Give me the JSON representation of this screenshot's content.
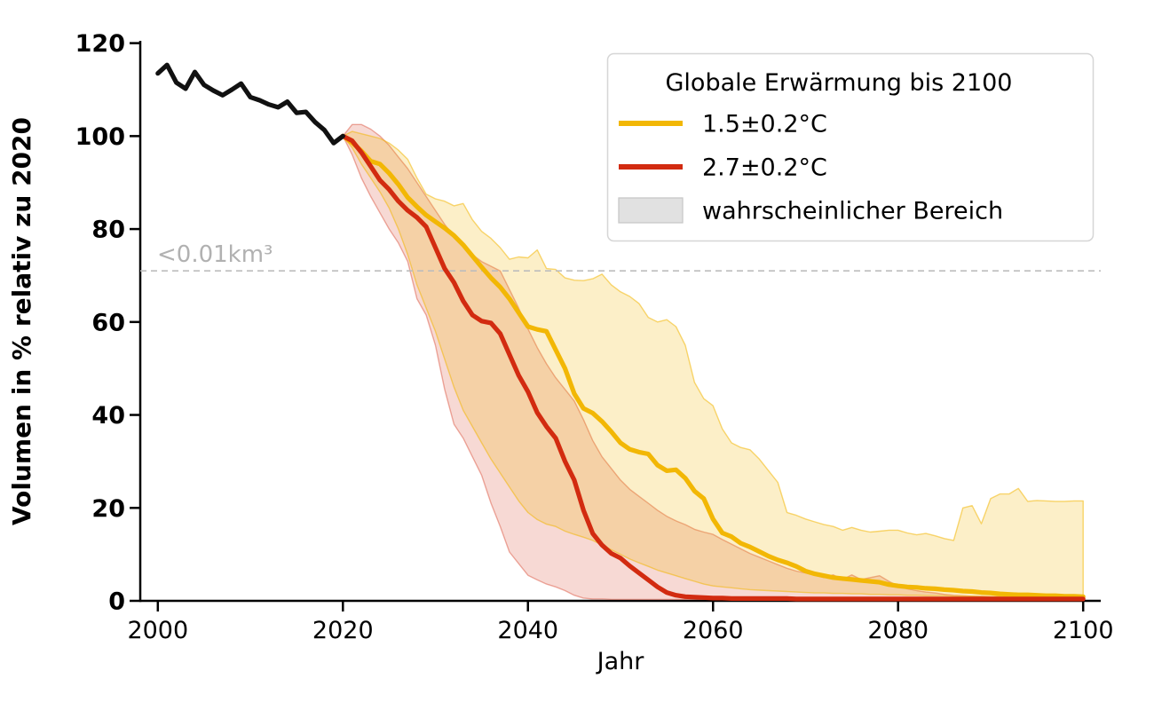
{
  "chart_data": {
    "type": "line",
    "title": "",
    "xlabel": "Jahr",
    "ylabel": "Volumen in % relativ zu 2020",
    "xlim": [
      1998.1,
      2101.9
    ],
    "ylim": [
      0,
      120.5
    ],
    "xticks": [
      2000,
      2020,
      2040,
      2060,
      2080,
      2100
    ],
    "yticks": [
      0,
      20,
      40,
      60,
      80,
      100,
      120
    ],
    "grid": false,
    "axis_color": "#000000",
    "threshold": {
      "value": 71,
      "label": "<0.01km³",
      "line_color": "#bdbdbd",
      "label_color": "#b1b1b1"
    },
    "legend": {
      "position": "top-right",
      "title": "Globale Erwärmung bis 2100",
      "border_color": "#d6d6d6",
      "entries": [
        {
          "label": "1.5±0.2°C",
          "type": "line",
          "color": "#f2b705"
        },
        {
          "label": "2.7±0.2°C",
          "type": "line",
          "color": "#d22b10"
        },
        {
          "label": "wahrscheinlicher Bereich",
          "type": "patch",
          "color": "#e1e1e1",
          "edge": "#c8c8c8"
        }
      ]
    },
    "series": [
      {
        "id": "historical",
        "color": "#111111",
        "x_start": 2000,
        "values": [
          113.5,
          115.3,
          111.5,
          110.2,
          113.8,
          111.0,
          109.8,
          108.8,
          110.0,
          111.3,
          108.4,
          107.7,
          106.8,
          106.2,
          107.4,
          105.0,
          105.2,
          103.0,
          101.3,
          98.5,
          100.0
        ]
      },
      {
        "id": "warming_1_5",
        "legend_label": "1.5±0.2°C",
        "color": "#f2b705",
        "band_fill": "rgba(242,183,5,0.22)",
        "band_edge": "rgba(242,183,5,0.55)",
        "x_start": 2020,
        "values": [
          100.0,
          98.6,
          96.8,
          94.6,
          94.0,
          92.0,
          89.6,
          86.8,
          84.8,
          83.0,
          81.6,
          80.2,
          78.6,
          76.6,
          74.2,
          71.8,
          69.5,
          67.5,
          65.0,
          62.0,
          59.0,
          58.4,
          58.0,
          54.0,
          50.0,
          44.6,
          41.4,
          40.4,
          38.6,
          36.4,
          34.0,
          32.6,
          32.0,
          31.6,
          29.2,
          28.0,
          28.2,
          26.4,
          23.6,
          22.0,
          17.6,
          14.6,
          13.8,
          12.4,
          11.6,
          10.6,
          9.6,
          8.8,
          8.2,
          7.4,
          6.4,
          5.8,
          5.4,
          5.0,
          4.8,
          4.6,
          4.4,
          4.2,
          4.0,
          3.5,
          3.2,
          3.0,
          2.9,
          2.7,
          2.6,
          2.4,
          2.3,
          2.1,
          2.0,
          1.8,
          1.7,
          1.5,
          1.4,
          1.3,
          1.3,
          1.2,
          1.1,
          1.1,
          1.0,
          1.0,
          0.9
        ],
        "band_hi": [
          100,
          101,
          100.5,
          100,
          99.5,
          98.5,
          97,
          95,
          91,
          87.5,
          86.5,
          86,
          85,
          85.5,
          82,
          79.5,
          78,
          76,
          73.5,
          74,
          73.8,
          75.5,
          71.5,
          71.3,
          69.5,
          69,
          68.9,
          69.3,
          70.3,
          68,
          66.5,
          65.5,
          64,
          61,
          60,
          60.5,
          59,
          55,
          47,
          43.5,
          42,
          37,
          34,
          33,
          32.5,
          30.5,
          28,
          25.5,
          19,
          18.4,
          17.6,
          17,
          16.4,
          16,
          15.2,
          15.8,
          15.2,
          14.8,
          15,
          15.2,
          15.2,
          14.6,
          14.2,
          14.5,
          14,
          13.4,
          13,
          20,
          20.5,
          16.6,
          22,
          23,
          23,
          24.2,
          21.4,
          21.6,
          21.5,
          21.4,
          21.4,
          21.5,
          21.5
        ],
        "band_lo": [
          100,
          97.5,
          94,
          91,
          88,
          84.5,
          80,
          74.5,
          68,
          63,
          58,
          52,
          46,
          41,
          37.5,
          34,
          30.5,
          27.5,
          24.5,
          21.5,
          19,
          17.5,
          16.5,
          16,
          15,
          14.3,
          13.7,
          13,
          12,
          11,
          10,
          9,
          8.2,
          7.4,
          6.6,
          6,
          5.4,
          4.8,
          4.2,
          3.6,
          3.2,
          3,
          2.8,
          2.6,
          2.4,
          2.3,
          2.2,
          2.1,
          2,
          1.9,
          1.8,
          1.7,
          1.7,
          1.6,
          1.6,
          1.5,
          1.5,
          1.4,
          1.4,
          1.3,
          1.3,
          1.2,
          1.2,
          1.1,
          1.1,
          1.1,
          1.0,
          1.0,
          1.0,
          0.9,
          0.9,
          0.9,
          0.8,
          0.8,
          0.8,
          0.8,
          0.7,
          0.7,
          0.7,
          0.7,
          0.7
        ]
      },
      {
        "id": "warming_2_7",
        "legend_label": "2.7±0.2°C",
        "color": "#d22b10",
        "band_fill": "rgba(210,43,16,0.18)",
        "band_edge": "rgba(210,43,16,0.38)",
        "x_start": 2020,
        "values": [
          100,
          99.0,
          96.5,
          93.5,
          90.5,
          88.5,
          86.0,
          84.0,
          82.5,
          80.5,
          76.0,
          71.5,
          68.5,
          64.5,
          61.5,
          60.2,
          59.8,
          57.5,
          53.0,
          48.5,
          45.0,
          40.5,
          37.5,
          35.0,
          30.0,
          26.0,
          19.5,
          14.5,
          12.0,
          10.2,
          9.2,
          7.5,
          6.0,
          4.5,
          3.0,
          1.8,
          1.2,
          0.9,
          0.8,
          0.7,
          0.6,
          0.6,
          0.5,
          0.5,
          0.5,
          0.5,
          0.5,
          0.5,
          0.5,
          0.4,
          0.4,
          0.4,
          0.4,
          0.4,
          0.4,
          0.4,
          0.4,
          0.4,
          0.4,
          0.4,
          0.4,
          0.4,
          0.4,
          0.4,
          0.4,
          0.4,
          0.4,
          0.4,
          0.4,
          0.4,
          0.4,
          0.4,
          0.4,
          0.4,
          0.4,
          0.4,
          0.4,
          0.4,
          0.4,
          0.4,
          0.4
        ],
        "band_hi": [
          100,
          102.5,
          102.5,
          101.5,
          100,
          98,
          95.5,
          93,
          90,
          87,
          84,
          81,
          78.5,
          76.5,
          74.5,
          73,
          72,
          71,
          67,
          63,
          58.5,
          54.5,
          51,
          48,
          45.5,
          43,
          39,
          34.5,
          31,
          28.5,
          26,
          24,
          22.5,
          21,
          19.5,
          18.2,
          17.2,
          16.4,
          15.4,
          14.8,
          14.3,
          13.2,
          12.2,
          11.2,
          10.2,
          9.4,
          8.6,
          7.8,
          7.0,
          6.4,
          6.0,
          5.5,
          5.0,
          5.6,
          4.6,
          5.6,
          4.6,
          5.0,
          5.4,
          4.2,
          3.2,
          2.6,
          2.2,
          1.9,
          1.7,
          1.4,
          1.2,
          1.1,
          1.0,
          1.0,
          0.9,
          0.9,
          0.8,
          0.8,
          0.8,
          0.7,
          0.7,
          0.7,
          0.6,
          0.6,
          0.6
        ],
        "band_lo": [
          100,
          96,
          91,
          87,
          83.5,
          80,
          77,
          73,
          65,
          61.5,
          55,
          45.5,
          38,
          35,
          31,
          27,
          21,
          16,
          10.5,
          8,
          5.5,
          4.5,
          3.6,
          3.0,
          2.2,
          1.2,
          0.6,
          0.4,
          0.4,
          0.3,
          0.3,
          0.3,
          0.3,
          0.3,
          0.3,
          0.3,
          0.3,
          0.3,
          0.3,
          0.3,
          0.3,
          0.3,
          0.3,
          0.3,
          0.3,
          0.3,
          0.3,
          0.3,
          0.3,
          0.3,
          0.2,
          0.2,
          0.2,
          0.2,
          0.2,
          0.2,
          0.2,
          0.2,
          0.2,
          0.2,
          0.2,
          0.2,
          0.2,
          0.2,
          0.2,
          0.2,
          0.2,
          0.2,
          0.2,
          0.2,
          0.2,
          0.2,
          0.2,
          0.2,
          0.2,
          0.2,
          0.2,
          0.2,
          0.2,
          0.2,
          0.2
        ]
      }
    ]
  }
}
